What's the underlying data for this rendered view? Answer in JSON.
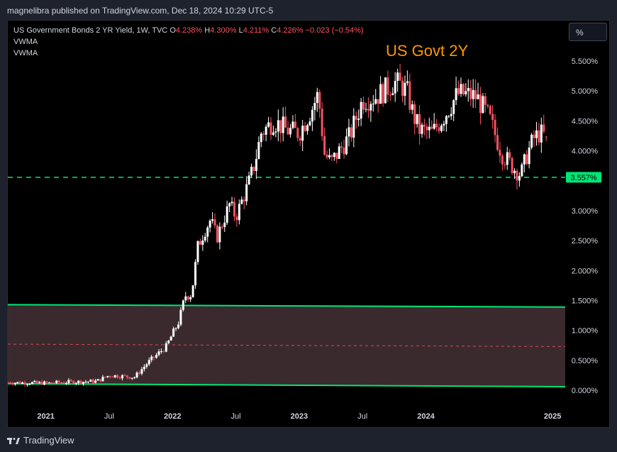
{
  "header": {
    "publisher_line": "magnelibra published on TradingView.com, Dec 18, 2024 10:29 UTC-5"
  },
  "legend": {
    "title": "US Government Bonds 2 YR Yield, 1W, TVC",
    "o_label": "O",
    "o_value": "4.238%",
    "h_label": "H",
    "h_value": "4.300%",
    "l_label": "L",
    "l_value": "4.211%",
    "c_label": "C",
    "c_value": "4.226%",
    "change": "−0.023 (−0.54%)",
    "indicator1": "VWMA",
    "indicator2": "VWMA"
  },
  "toolbar": {
    "scale_button": "%"
  },
  "annotation": {
    "text": "US Govt 2Y"
  },
  "footer": {
    "brand": "TradingView"
  },
  "colors": {
    "up": "#ffffff",
    "down": "#f7525f",
    "support_line": "#00e676",
    "zone_fill": "#3a2a2e",
    "zone_border": "#00e676",
    "mid_line": "#f7525f",
    "annotation": "#ff9800"
  },
  "chart_data": {
    "type": "candlestick",
    "title": "US Government Bonds 2 YR Yield, 1W, TVC",
    "interval": "1W",
    "price_scale": "percent",
    "ylim": [
      -0.05,
      5.9
    ],
    "y_ticks": [
      {
        "value": 5.5,
        "label": "5.500%"
      },
      {
        "value": 5.0,
        "label": "5.000%"
      },
      {
        "value": 4.5,
        "label": "4.500%"
      },
      {
        "value": 4.0,
        "label": "4.000%"
      },
      {
        "value": 3.0,
        "label": "3.000%"
      },
      {
        "value": 2.5,
        "label": "2.500%"
      },
      {
        "value": 2.0,
        "label": "2.000%"
      },
      {
        "value": 1.5,
        "label": "1.500%"
      },
      {
        "value": 1.0,
        "label": "1.000%"
      },
      {
        "value": 0.5,
        "label": "0.500%"
      },
      {
        "value": 0.0,
        "label": "0.000%"
      }
    ],
    "x_ticks": [
      {
        "t": 2021.0,
        "label": "2021",
        "bold": true
      },
      {
        "t": 2021.5,
        "label": "Jul",
        "bold": false
      },
      {
        "t": 2022.0,
        "label": "2022",
        "bold": true
      },
      {
        "t": 2022.5,
        "label": "Jul",
        "bold": false
      },
      {
        "t": 2023.0,
        "label": "2023",
        "bold": true
      },
      {
        "t": 2023.5,
        "label": "Jul",
        "bold": false
      },
      {
        "t": 2024.0,
        "label": "2024",
        "bold": true
      },
      {
        "t": 2025.0,
        "label": "2025",
        "bold": true
      }
    ],
    "xlim": [
      2020.7,
      2025.1
    ],
    "support_level": {
      "value": 3.557,
      "label": "3.557%",
      "style": "dashed"
    },
    "zone": {
      "upper": {
        "t0": 2020.7,
        "v0": 1.43,
        "t1": 2025.1,
        "v1": 1.39
      },
      "lower": {
        "t0": 2020.7,
        "v0": 0.11,
        "t1": 2025.1,
        "v1": 0.06
      },
      "mid": {
        "t0": 2020.7,
        "v0": 0.77,
        "t1": 2025.1,
        "v1": 0.73
      }
    },
    "path": [
      [
        2020.7,
        0.13
      ],
      [
        2021.0,
        0.12
      ],
      [
        2021.2,
        0.14
      ],
      [
        2021.4,
        0.15
      ],
      [
        2021.5,
        0.25
      ],
      [
        2021.7,
        0.22
      ],
      [
        2021.8,
        0.45
      ],
      [
        2021.95,
        0.73
      ],
      [
        2022.05,
        1.15
      ],
      [
        2022.1,
        1.58
      ],
      [
        2022.15,
        1.6
      ],
      [
        2022.2,
        2.4
      ],
      [
        2022.25,
        2.65
      ],
      [
        2022.3,
        2.85
      ],
      [
        2022.35,
        2.55
      ],
      [
        2022.45,
        3.1
      ],
      [
        2022.5,
        2.9
      ],
      [
        2022.6,
        3.45
      ],
      [
        2022.65,
        3.8
      ],
      [
        2022.7,
        4.3
      ],
      [
        2022.8,
        4.5
      ],
      [
        2022.9,
        4.35
      ],
      [
        2023.0,
        4.3
      ],
      [
        2023.1,
        4.7
      ],
      [
        2023.15,
        4.95
      ],
      [
        2023.2,
        3.95
      ],
      [
        2023.25,
        3.8
      ],
      [
        2023.35,
        4.1
      ],
      [
        2023.4,
        4.25
      ],
      [
        2023.5,
        4.85
      ],
      [
        2023.6,
        4.9
      ],
      [
        2023.7,
        5.05
      ],
      [
        2023.75,
        5.15
      ],
      [
        2023.8,
        5.1
      ],
      [
        2023.85,
        5.0
      ],
      [
        2023.9,
        4.6
      ],
      [
        2023.95,
        4.35
      ],
      [
        2024.05,
        4.3
      ],
      [
        2024.15,
        4.6
      ],
      [
        2024.25,
        4.95
      ],
      [
        2024.3,
        4.95
      ],
      [
        2024.4,
        4.9
      ],
      [
        2024.5,
        4.55
      ],
      [
        2024.6,
        3.95
      ],
      [
        2024.7,
        3.7
      ],
      [
        2024.75,
        3.6
      ],
      [
        2024.8,
        3.95
      ],
      [
        2024.85,
        4.2
      ],
      [
        2024.9,
        4.3
      ],
      [
        2024.95,
        4.23
      ]
    ],
    "last": {
      "open": 4.238,
      "high": 4.3,
      "low": 4.211,
      "close": 4.226,
      "change": -0.023,
      "change_pct": -0.54
    }
  }
}
